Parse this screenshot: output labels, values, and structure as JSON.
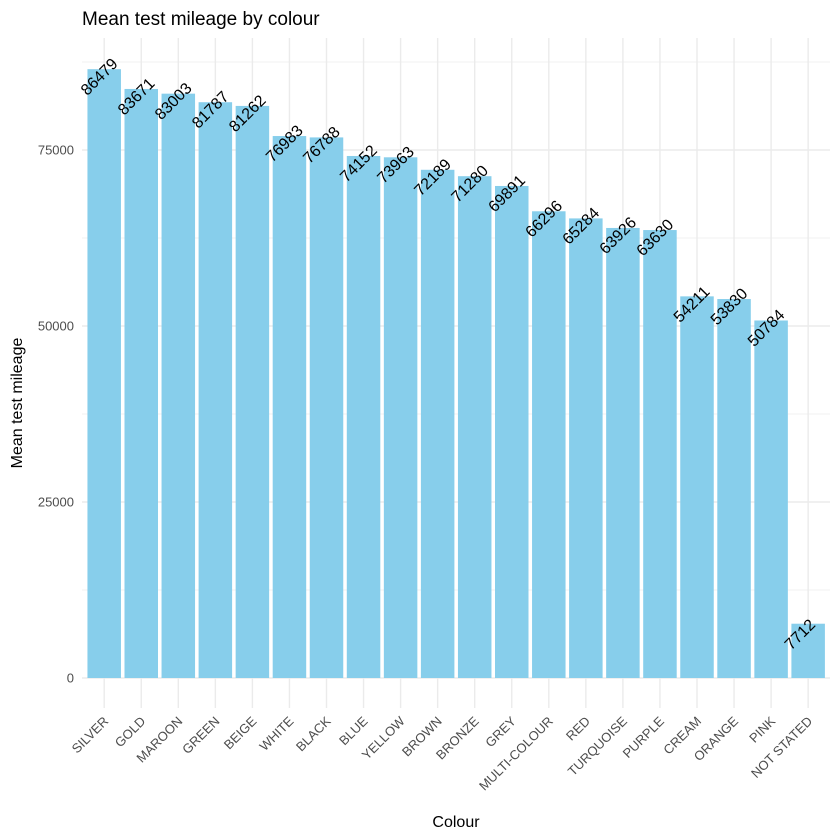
{
  "chart_data": {
    "type": "bar",
    "title": "Mean test mileage by colour",
    "xlabel": "Colour",
    "ylabel": "Mean test mileage",
    "categories": [
      "SILVER",
      "GOLD",
      "MAROON",
      "GREEN",
      "BEIGE",
      "WHITE",
      "BLACK",
      "BLUE",
      "YELLOW",
      "BROWN",
      "BRONZE",
      "GREY",
      "MULTI-COLOUR",
      "RED",
      "TURQUOISE",
      "PURPLE",
      "CREAM",
      "ORANGE",
      "PINK",
      "NOT STATED"
    ],
    "values": [
      86479,
      83671,
      83003,
      81787,
      81262,
      76983,
      76788,
      74152,
      73963,
      72189,
      71280,
      69891,
      66296,
      65284,
      63926,
      63630,
      54211,
      53830,
      50784,
      7712
    ],
    "data_labels": [
      "86479",
      "83671",
      "83003",
      "81787",
      "81262",
      "76983",
      "76788",
      "74152",
      "73963",
      "72189",
      "71280",
      "69891",
      "66296",
      "65284",
      "63926",
      "63630",
      "54211",
      "53830",
      "50784",
      "7712"
    ],
    "ylim": [
      0,
      90000
    ],
    "yticks": [
      0,
      25000,
      50000,
      75000
    ],
    "ytick_labels": [
      "0",
      "25000",
      "50000",
      "75000"
    ],
    "grid": true,
    "bar_color": "#87ceeb",
    "theme": "minimal"
  }
}
